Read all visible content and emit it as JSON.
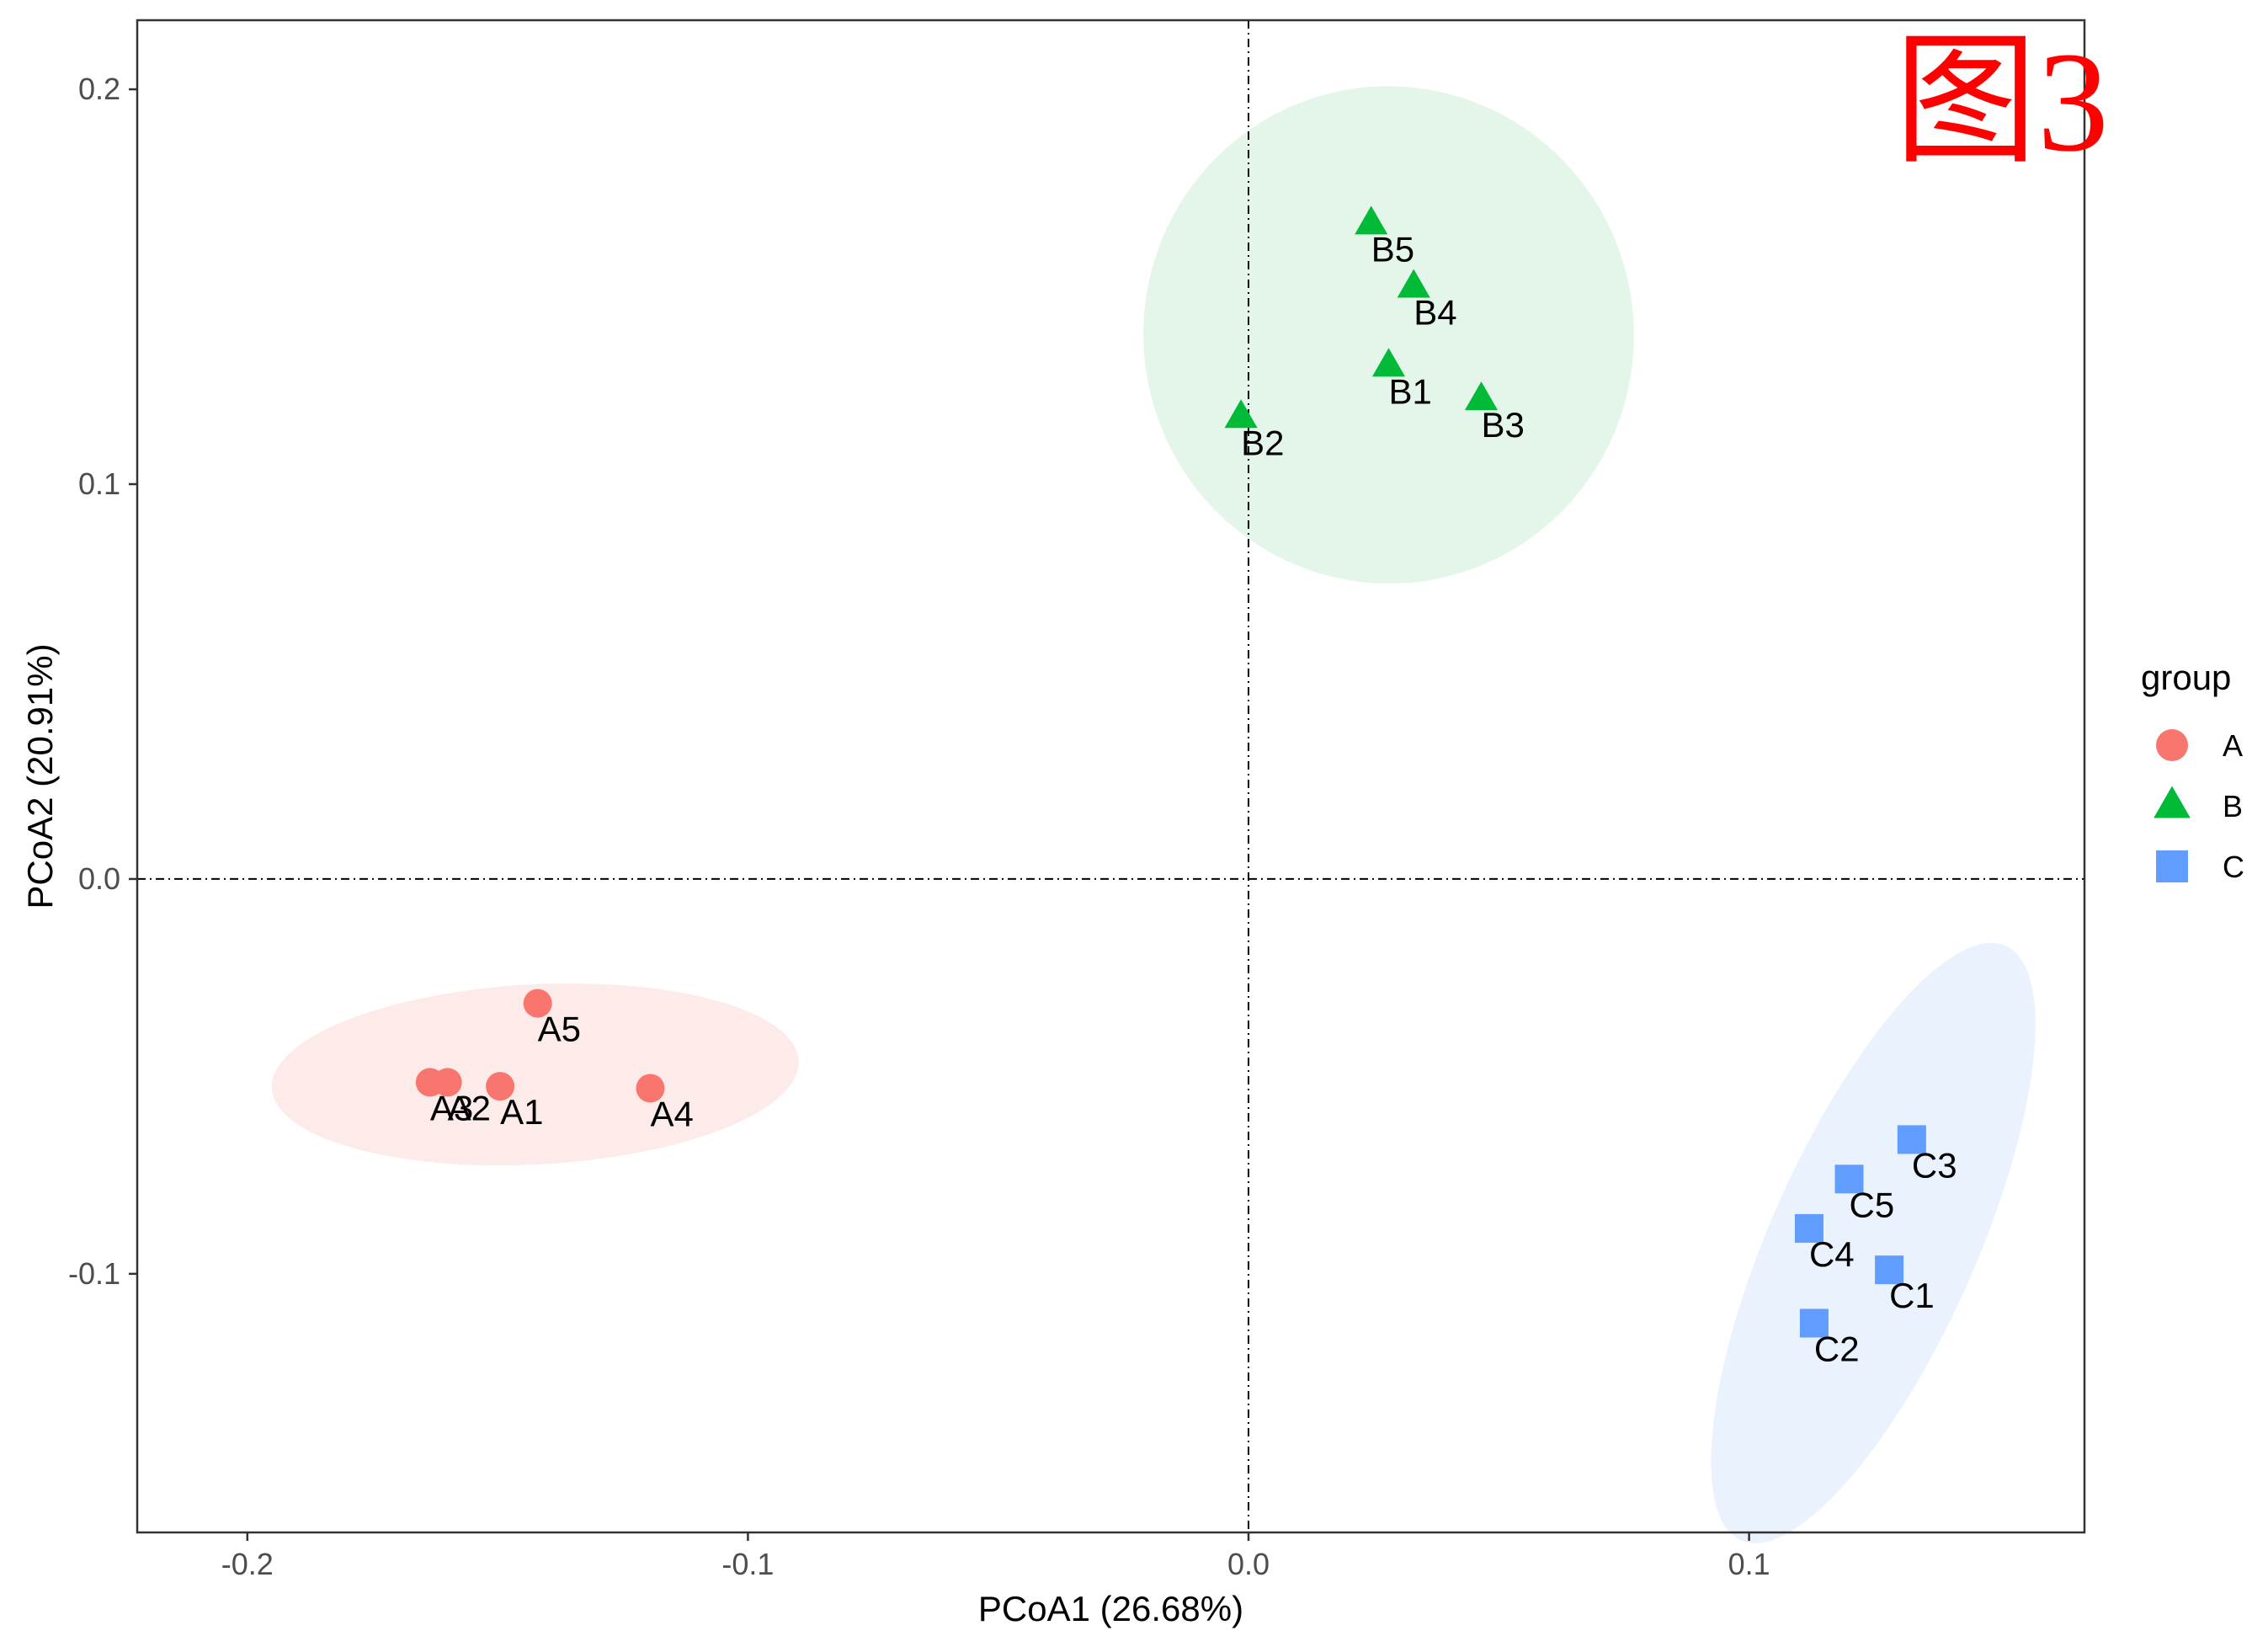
{
  "chart_data": {
    "type": "scatter",
    "title": "",
    "figure_tag": "图3",
    "xlabel": "PCoA1 (26.68%)",
    "ylabel": "PCoA2 (20.91%)",
    "xlim": [
      -0.222,
      0.167
    ],
    "ylim": [
      -0.1655,
      0.2175
    ],
    "x_ticks": [
      -0.2,
      -0.1,
      0.0,
      0.1
    ],
    "x_tick_labels": [
      "-0.2",
      "-0.1",
      "0.0",
      "0.1"
    ],
    "y_ticks": [
      -0.1,
      0.0,
      0.1,
      0.2
    ],
    "y_tick_labels": [
      "-0.1",
      "0.0",
      "0.1",
      "0.2"
    ],
    "grid": false,
    "reference_lines": {
      "x": 0.0,
      "y": 0.0,
      "style": "dotdash"
    },
    "legend": {
      "title": "group",
      "placement": "right",
      "entries": [
        {
          "label": "A",
          "shape": "circle",
          "color": "#F8766D"
        },
        {
          "label": "B",
          "shape": "triangle",
          "color": "#00BA38"
        },
        {
          "label": "C",
          "shape": "square",
          "color": "#619CFF"
        }
      ]
    },
    "series": [
      {
        "name": "A",
        "shape": "circle",
        "color": "#F8766D",
        "fill": "#FDEBE9",
        "ellipse": {
          "cx": -0.1425,
          "cy": -0.0495,
          "rx": 0.0527,
          "ry": 0.0228,
          "angle_deg": -3
        },
        "points": [
          {
            "label": "A1",
            "x": -0.1495,
            "y": -0.0525
          },
          {
            "label": "A2",
            "x": -0.16,
            "y": -0.0515
          },
          {
            "label": "A3",
            "x": -0.1635,
            "y": -0.0515
          },
          {
            "label": "A4",
            "x": -0.1195,
            "y": -0.053
          },
          {
            "label": "A5",
            "x": -0.142,
            "y": -0.0315
          }
        ]
      },
      {
        "name": "B",
        "shape": "triangle",
        "color": "#00BA38",
        "fill": "#E4F6EA",
        "ellipse": {
          "cx": 0.028,
          "cy": 0.1378,
          "rx": 0.049,
          "ry": 0.063,
          "angle_deg": -5
        },
        "points": [
          {
            "label": "B1",
            "x": 0.028,
            "y": 0.13
          },
          {
            "label": "B2",
            "x": -0.0015,
            "y": 0.117
          },
          {
            "label": "B3",
            "x": 0.0465,
            "y": 0.1215
          },
          {
            "label": "B4",
            "x": 0.033,
            "y": 0.15
          },
          {
            "label": "B5",
            "x": 0.0245,
            "y": 0.166
          }
        ]
      },
      {
        "name": "C",
        "shape": "square",
        "color": "#619CFF",
        "fill": "#EAF2FE",
        "ellipse": {
          "cx": 0.1248,
          "cy": -0.0922,
          "rx": 0.065,
          "ry": 0.026,
          "angle_deg": -66
        },
        "points": [
          {
            "label": "C1",
            "x": 0.128,
            "y": -0.099
          },
          {
            "label": "C2",
            "x": 0.113,
            "y": -0.1125
          },
          {
            "label": "C3",
            "x": 0.1325,
            "y": -0.066
          },
          {
            "label": "C4",
            "x": 0.112,
            "y": -0.0885
          },
          {
            "label": "C5",
            "x": 0.12,
            "y": -0.076
          }
        ]
      }
    ]
  }
}
